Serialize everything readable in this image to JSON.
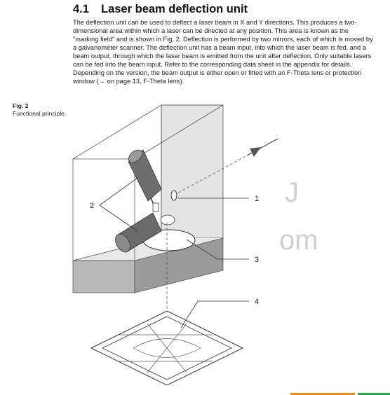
{
  "section": {
    "number": "4.1",
    "title": "Laser beam deflection unit"
  },
  "body_text": "The deflection unit can be used to deflect a laser beam in X and Y directions. This produces a two-dimensional area within which a laser can be directed at any position. This area is known as the \"marking field\" and is shown in Fig. 2. Deflection is performed by two mirrors, each of which is moved by a galvanometer scanner. The deflection unit has a beam input, into which the laser beam is fed, and a beam output, through which the laser beam is emitted from the unit after deflection. Only suitable lasers can be fed into the beam input. Refer to the corresponding data sheet in the appendix for details. Depending on the version, the beam output is either open or fitted with an F-Theta lens or protection window (→ on page 13, F-Theta lens).",
  "figure": {
    "number": "Fig. 2",
    "caption": "Functional principle",
    "callouts": [
      "1",
      "2",
      "3",
      "4"
    ]
  },
  "watermark": {
    "glyph_top": "J",
    "glyph_bottom": "om"
  },
  "colors": {
    "bar_orange": "#f08a1c",
    "bar_green": "#2aa84a"
  }
}
